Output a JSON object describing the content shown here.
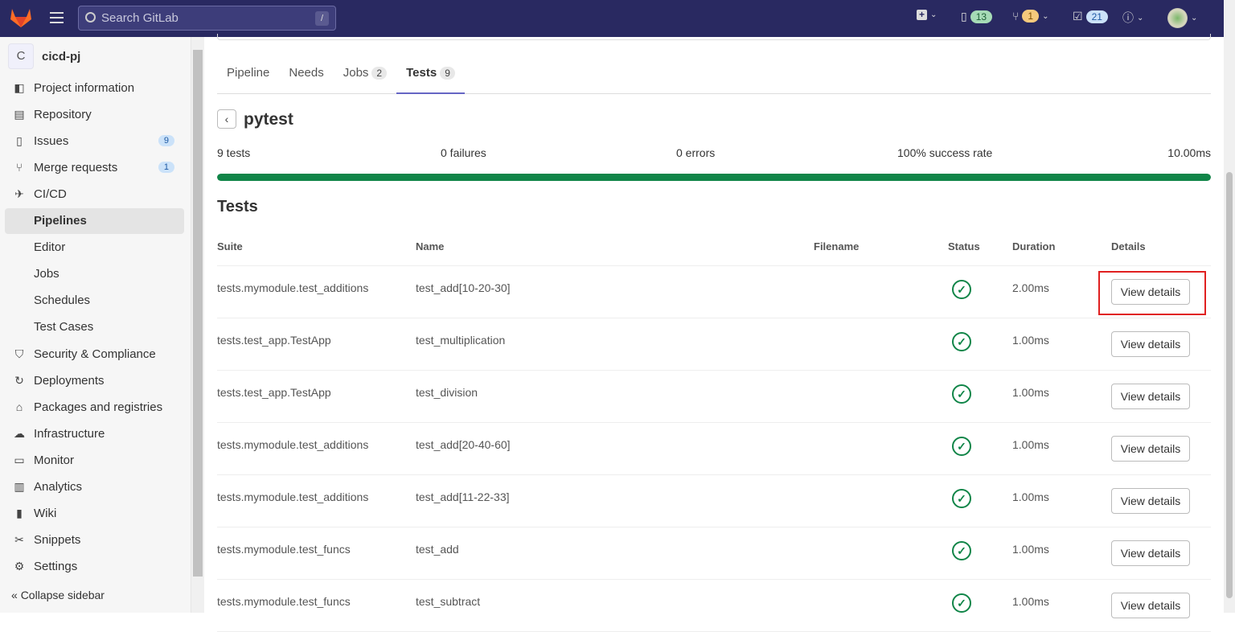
{
  "header": {
    "search_placeholder": "Search GitLab",
    "search_shortcut": "/",
    "issues_count": "13",
    "mr_count": "1",
    "todos_count": "21",
    "colors": {
      "bg": "#292961",
      "issues_pill": "#a6dbb6",
      "mr_pill": "#f5c97c",
      "todos_pill": "#cbe2f9"
    }
  },
  "sidebar": {
    "project_initial": "C",
    "project_name": "cicd-pj",
    "items": [
      {
        "label": "Project information",
        "icon": "info-icon",
        "glyph": "◧"
      },
      {
        "label": "Repository",
        "icon": "document-icon",
        "glyph": "▤"
      },
      {
        "label": "Issues",
        "icon": "issues-icon",
        "glyph": "▯",
        "count": "9"
      },
      {
        "label": "Merge requests",
        "icon": "merge-request-icon",
        "glyph": "⑂",
        "count": "1"
      },
      {
        "label": "CI/CD",
        "icon": "rocket-icon",
        "glyph": "✈"
      },
      {
        "label": "Pipelines",
        "sub": true,
        "active": true
      },
      {
        "label": "Editor",
        "sub": true
      },
      {
        "label": "Jobs",
        "sub": true
      },
      {
        "label": "Schedules",
        "sub": true
      },
      {
        "label": "Test Cases",
        "sub": true
      },
      {
        "label": "Security & Compliance",
        "icon": "shield-icon",
        "glyph": "⛉"
      },
      {
        "label": "Deployments",
        "icon": "deployments-icon",
        "glyph": "↻"
      },
      {
        "label": "Packages and registries",
        "icon": "package-icon",
        "glyph": "⌂"
      },
      {
        "label": "Infrastructure",
        "icon": "cloud-icon",
        "glyph": "☁"
      },
      {
        "label": "Monitor",
        "icon": "monitor-icon",
        "glyph": "▭"
      },
      {
        "label": "Analytics",
        "icon": "chart-icon",
        "glyph": "▥"
      },
      {
        "label": "Wiki",
        "icon": "book-icon",
        "glyph": "▮"
      },
      {
        "label": "Snippets",
        "icon": "scissors-icon",
        "glyph": "✂"
      },
      {
        "label": "Settings",
        "icon": "gear-icon",
        "glyph": "⚙"
      }
    ],
    "collapse_label": "Collapse sidebar"
  },
  "tabs": [
    {
      "label": "Pipeline"
    },
    {
      "label": "Needs"
    },
    {
      "label": "Jobs",
      "count": "2"
    },
    {
      "label": "Tests",
      "count": "9",
      "active": true
    }
  ],
  "suite": {
    "title": "pytest",
    "tests": "9 tests",
    "failures": "0 failures",
    "errors": "0 errors",
    "success_rate": "100% success rate",
    "duration": "10.00ms",
    "success_percent": 100,
    "bar_color": "#108548"
  },
  "tests_heading": "Tests",
  "columns": {
    "suite": "Suite",
    "name": "Name",
    "filename": "Filename",
    "status": "Status",
    "duration": "Duration",
    "details": "Details"
  },
  "rows": [
    {
      "suite": "tests.mymodule.test_additions",
      "name": "test_add[10-20-30]",
      "filename": "",
      "status": "success",
      "duration": "2.00ms",
      "action": "View details",
      "highlighted": true
    },
    {
      "suite": "tests.test_app.TestApp",
      "name": "test_multiplication",
      "filename": "",
      "status": "success",
      "duration": "1.00ms",
      "action": "View details"
    },
    {
      "suite": "tests.test_app.TestApp",
      "name": "test_division",
      "filename": "",
      "status": "success",
      "duration": "1.00ms",
      "action": "View details"
    },
    {
      "suite": "tests.mymodule.test_additions",
      "name": "test_add[20-40-60]",
      "filename": "",
      "status": "success",
      "duration": "1.00ms",
      "action": "View details"
    },
    {
      "suite": "tests.mymodule.test_additions",
      "name": "test_add[11-22-33]",
      "filename": "",
      "status": "success",
      "duration": "1.00ms",
      "action": "View details"
    },
    {
      "suite": "tests.mymodule.test_funcs",
      "name": "test_add",
      "filename": "",
      "status": "success",
      "duration": "1.00ms",
      "action": "View details"
    },
    {
      "suite": "tests.mymodule.test_funcs",
      "name": "test_subtract",
      "filename": "",
      "status": "success",
      "duration": "1.00ms",
      "action": "View details"
    }
  ]
}
